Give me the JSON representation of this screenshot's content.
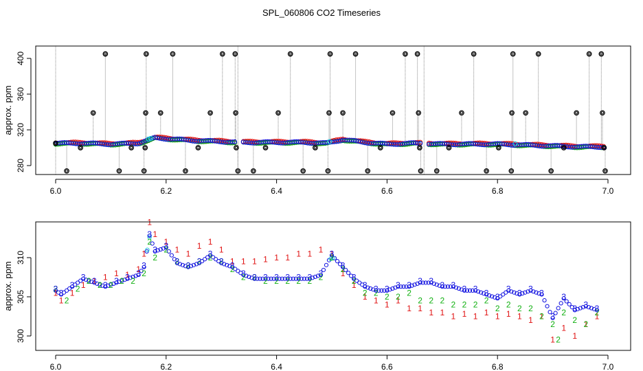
{
  "figure_title": "SPL_060806  CO2 Timeseries",
  "colors": {
    "series1": "#e01010",
    "series2": "#10b010",
    "series3": "#1010e0",
    "cyan": "#20c8d8",
    "black": "#000000",
    "gray": "#888888"
  },
  "chart_data": [
    {
      "type": "scatter",
      "ylabel": "approx. ppm",
      "xlabel": "",
      "xlim": [
        6.0,
        7.0
      ],
      "ylim": [
        270,
        410
      ],
      "x_ticks": [
        "6.0",
        "6.2",
        "6.4",
        "6.6",
        "6.8",
        "7.0"
      ],
      "y_ticks": [
        "280",
        "320",
        "360",
        "400"
      ],
      "baseline_points": [
        [
          6.0,
          305
        ],
        [
          6.05,
          305
        ],
        [
          6.1,
          304
        ],
        [
          6.15,
          305
        ],
        [
          6.18,
          311
        ],
        [
          6.25,
          308
        ],
        [
          6.3,
          307
        ],
        [
          6.33,
          306
        ],
        [
          6.36,
          306
        ],
        [
          6.4,
          306
        ],
        [
          6.45,
          306
        ],
        [
          6.49,
          305
        ],
        [
          6.52,
          309
        ],
        [
          6.56,
          306
        ],
        [
          6.6,
          304
        ],
        [
          6.65,
          305
        ],
        [
          6.7,
          304
        ],
        [
          6.75,
          304
        ],
        [
          6.8,
          304
        ],
        [
          6.85,
          303
        ],
        [
          6.9,
          302
        ],
        [
          6.95,
          301
        ],
        [
          6.99,
          301
        ]
      ],
      "spikes": [
        [
          6.0,
          305
        ],
        [
          6.02,
          274
        ],
        [
          6.045,
          300
        ],
        [
          6.068,
          339
        ],
        [
          6.09,
          405
        ],
        [
          6.115,
          274
        ],
        [
          6.137,
          300
        ],
        [
          6.16,
          274
        ],
        [
          6.162,
          300
        ],
        [
          6.163,
          339
        ],
        [
          6.164,
          405
        ],
        [
          6.19,
          339
        ],
        [
          6.212,
          405
        ],
        [
          6.235,
          274
        ],
        [
          6.258,
          300
        ],
        [
          6.28,
          339
        ],
        [
          6.302,
          405
        ],
        [
          6.325,
          405
        ],
        [
          6.326,
          339
        ],
        [
          6.327,
          300
        ],
        [
          6.33,
          274
        ],
        [
          6.358,
          274
        ],
        [
          6.38,
          300
        ],
        [
          6.403,
          339
        ],
        [
          6.425,
          405
        ],
        [
          6.448,
          274
        ],
        [
          6.47,
          300
        ],
        [
          6.493,
          274
        ],
        [
          6.495,
          339
        ],
        [
          6.497,
          405
        ],
        [
          6.52,
          339
        ],
        [
          6.543,
          405
        ],
        [
          6.565,
          274
        ],
        [
          6.588,
          300
        ],
        [
          6.61,
          339
        ],
        [
          6.633,
          405
        ],
        [
          6.655,
          405
        ],
        [
          6.657,
          339
        ],
        [
          6.659,
          300
        ],
        [
          6.661,
          274
        ],
        [
          6.69,
          274
        ],
        [
          6.712,
          300
        ],
        [
          6.735,
          339
        ],
        [
          6.757,
          405
        ],
        [
          6.78,
          274
        ],
        [
          6.802,
          300
        ],
        [
          6.825,
          274
        ],
        [
          6.826,
          339
        ],
        [
          6.828,
          405
        ],
        [
          6.851,
          339
        ],
        [
          6.874,
          405
        ],
        [
          6.897,
          274
        ],
        [
          6.92,
          300
        ],
        [
          6.943,
          339
        ],
        [
          6.966,
          405
        ],
        [
          6.988,
          405
        ],
        [
          6.99,
          339
        ],
        [
          6.993,
          300
        ],
        [
          6.995,
          274
        ]
      ],
      "gaps": [
        6.33,
        6.667
      ]
    },
    {
      "type": "scatter",
      "ylabel": "approx. ppm",
      "xlabel": "",
      "xlim": [
        6.0,
        7.0
      ],
      "ylim": [
        298.5,
        315.5
      ],
      "x_ticks": [
        "6.0",
        "6.2",
        "6.4",
        "6.6",
        "6.8",
        "7.0"
      ],
      "y_ticks": [
        "300",
        "305",
        "310"
      ],
      "series": [
        {
          "name": "1",
          "marker": "1",
          "points": [
            [
              6.0,
              305.5
            ],
            [
              6.01,
              304.5
            ],
            [
              6.03,
              305.5
            ],
            [
              6.05,
              306.5
            ],
            [
              6.07,
              307.0
            ],
            [
              6.09,
              307.5
            ],
            [
              6.11,
              308.0
            ],
            [
              6.13,
              307.8
            ],
            [
              6.15,
              308.5
            ],
            [
              6.16,
              310.5
            ],
            [
              6.17,
              314.5
            ],
            [
              6.18,
              313.0
            ],
            [
              6.2,
              312.0
            ],
            [
              6.22,
              311.0
            ],
            [
              6.24,
              310.5
            ],
            [
              6.26,
              311.5
            ],
            [
              6.28,
              312.0
            ],
            [
              6.3,
              311.0
            ],
            [
              6.32,
              309.5
            ],
            [
              6.34,
              309.5
            ],
            [
              6.36,
              309.5
            ],
            [
              6.38,
              309.8
            ],
            [
              6.4,
              310.0
            ],
            [
              6.42,
              310.0
            ],
            [
              6.44,
              310.5
            ],
            [
              6.46,
              310.5
            ],
            [
              6.48,
              311.0
            ],
            [
              6.5,
              310.5
            ],
            [
              6.52,
              308.0
            ],
            [
              6.54,
              306.5
            ],
            [
              6.56,
              305.0
            ],
            [
              6.58,
              304.5
            ],
            [
              6.6,
              304.0
            ],
            [
              6.62,
              304.5
            ],
            [
              6.64,
              303.5
            ],
            [
              6.66,
              303.5
            ],
            [
              6.68,
              303.0
            ],
            [
              6.7,
              303.0
            ],
            [
              6.72,
              302.5
            ],
            [
              6.74,
              302.8
            ],
            [
              6.76,
              302.5
            ],
            [
              6.78,
              303.0
            ],
            [
              6.8,
              302.5
            ],
            [
              6.82,
              302.8
            ],
            [
              6.84,
              302.5
            ],
            [
              6.86,
              302.0
            ],
            [
              6.88,
              302.5
            ],
            [
              6.9,
              299.5
            ],
            [
              6.92,
              301.0
            ],
            [
              6.94,
              300.0
            ],
            [
              6.96,
              301.5
            ],
            [
              6.98,
              302.5
            ]
          ]
        },
        {
          "name": "2",
          "marker": "2",
          "points": [
            [
              6.0,
              306.0
            ],
            [
              6.02,
              304.5
            ],
            [
              6.04,
              306.0
            ],
            [
              6.06,
              307.0
            ],
            [
              6.08,
              306.5
            ],
            [
              6.1,
              306.5
            ],
            [
              6.12,
              307.0
            ],
            [
              6.14,
              307.0
            ],
            [
              6.16,
              308.0
            ],
            [
              6.17,
              312.0
            ],
            [
              6.18,
              310.0
            ],
            [
              6.2,
              311.0
            ],
            [
              6.22,
              309.5
            ],
            [
              6.24,
              309.0
            ],
            [
              6.26,
              309.5
            ],
            [
              6.28,
              310.0
            ],
            [
              6.3,
              309.5
            ],
            [
              6.32,
              308.5
            ],
            [
              6.34,
              307.5
            ],
            [
              6.36,
              307.5
            ],
            [
              6.38,
              307.0
            ],
            [
              6.4,
              307.0
            ],
            [
              6.42,
              307.0
            ],
            [
              6.44,
              307.0
            ],
            [
              6.46,
              307.0
            ],
            [
              6.48,
              307.5
            ],
            [
              6.5,
              310.0
            ],
            [
              6.52,
              308.5
            ],
            [
              6.54,
              307.0
            ],
            [
              6.56,
              305.5
            ],
            [
              6.58,
              305.5
            ],
            [
              6.6,
              305.0
            ],
            [
              6.62,
              305.0
            ],
            [
              6.64,
              305.5
            ],
            [
              6.66,
              304.5
            ],
            [
              6.68,
              304.5
            ],
            [
              6.7,
              304.5
            ],
            [
              6.72,
              304.0
            ],
            [
              6.74,
              304.0
            ],
            [
              6.76,
              304.0
            ],
            [
              6.78,
              304.5
            ],
            [
              6.8,
              303.5
            ],
            [
              6.82,
              304.0
            ],
            [
              6.84,
              303.5
            ],
            [
              6.86,
              303.5
            ],
            [
              6.88,
              302.5
            ],
            [
              6.9,
              301.5
            ],
            [
              6.91,
              299.5
            ],
            [
              6.92,
              303.0
            ],
            [
              6.94,
              302.0
            ],
            [
              6.96,
              301.5
            ],
            [
              6.98,
              303.0
            ]
          ]
        },
        {
          "name": "3",
          "marker": "3",
          "points": [
            [
              6.0,
              306.0
            ],
            [
              6.01,
              305.5
            ],
            [
              6.03,
              306.5
            ],
            [
              6.05,
              307.5
            ],
            [
              6.07,
              307.0
            ],
            [
              6.09,
              306.5
            ],
            [
              6.11,
              307.0
            ],
            [
              6.13,
              307.5
            ],
            [
              6.15,
              308.0
            ],
            [
              6.16,
              309.0
            ],
            [
              6.17,
              313.0
            ],
            [
              6.18,
              311.0
            ],
            [
              6.2,
              311.5
            ],
            [
              6.22,
              309.5
            ],
            [
              6.24,
              309.0
            ],
            [
              6.26,
              309.5
            ],
            [
              6.28,
              310.5
            ],
            [
              6.3,
              309.5
            ],
            [
              6.32,
              309.0
            ],
            [
              6.34,
              308.0
            ],
            [
              6.36,
              307.5
            ],
            [
              6.38,
              307.5
            ],
            [
              6.4,
              307.5
            ],
            [
              6.42,
              307.5
            ],
            [
              6.44,
              307.5
            ],
            [
              6.46,
              307.5
            ],
            [
              6.48,
              308.0
            ],
            [
              6.5,
              310.5
            ],
            [
              6.52,
              309.0
            ],
            [
              6.54,
              307.5
            ],
            [
              6.56,
              306.5
            ],
            [
              6.58,
              306.0
            ],
            [
              6.6,
              306.0
            ],
            [
              6.62,
              306.5
            ],
            [
              6.64,
              306.5
            ],
            [
              6.66,
              307.0
            ],
            [
              6.68,
              307.0
            ],
            [
              6.7,
              306.5
            ],
            [
              6.72,
              306.5
            ],
            [
              6.74,
              306.0
            ],
            [
              6.76,
              306.0
            ],
            [
              6.78,
              305.5
            ],
            [
              6.8,
              305.0
            ],
            [
              6.82,
              306.0
            ],
            [
              6.84,
              305.5
            ],
            [
              6.86,
              306.0
            ],
            [
              6.88,
              305.5
            ],
            [
              6.9,
              302.5
            ],
            [
              6.92,
              305.0
            ],
            [
              6.94,
              303.5
            ],
            [
              6.96,
              304.0
            ],
            [
              6.98,
              303.5
            ]
          ]
        }
      ]
    }
  ]
}
